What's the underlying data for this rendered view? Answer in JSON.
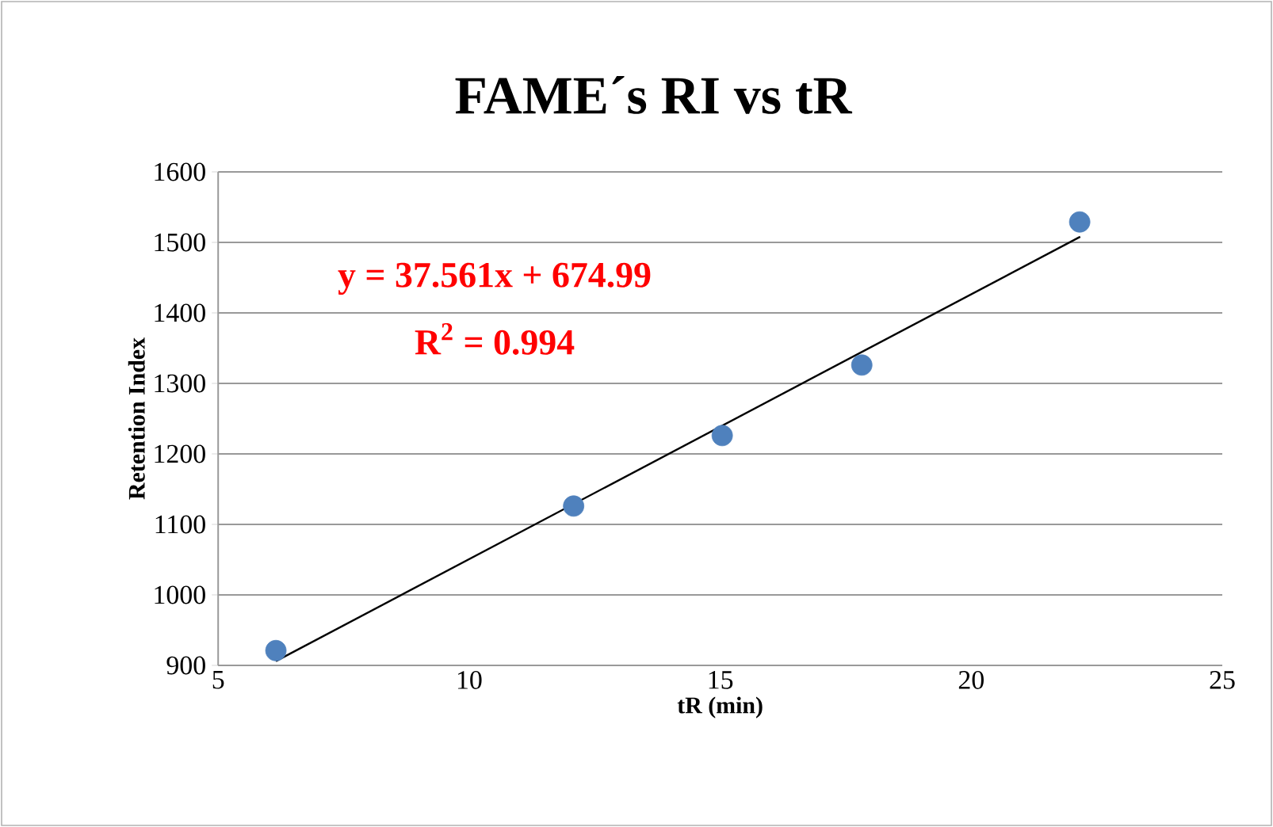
{
  "chart_data": {
    "type": "scatter",
    "title": "FAME´s RI vs tR",
    "xlabel": "tR (min)",
    "ylabel": "Retention Index",
    "xlim": [
      5,
      25
    ],
    "xticks": [
      5,
      10,
      15,
      20,
      25
    ],
    "ylim": [
      900,
      1600
    ],
    "yticks": [
      900,
      1000,
      1100,
      1200,
      1300,
      1400,
      1500,
      1600
    ],
    "grid": "y",
    "series": [
      {
        "marker": "circle",
        "color": "#4f81bd",
        "x": [
          6.15,
          12.08,
          15.04,
          17.82,
          22.16
        ],
        "values": [
          921,
          1126,
          1226,
          1326,
          1529
        ]
      },
      {
        "type": "line",
        "marker": "none",
        "color": "#000000",
        "x": [
          6.15,
          22.17
        ],
        "values": [
          906,
          1508
        ]
      }
    ],
    "annotations": [
      "y = 37.561x + 674.99",
      "R$^{2}$ = 0.994"
    ]
  }
}
